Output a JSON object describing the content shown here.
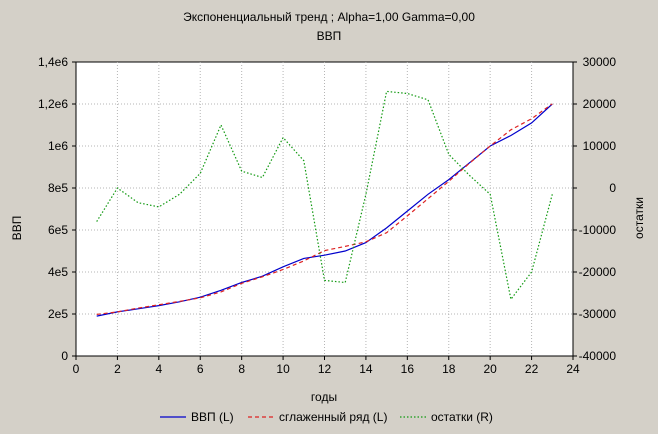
{
  "chart_data": {
    "type": "line",
    "title": "Экспоненциальный тренд ; Alpha=1,00 Gamma=0,00",
    "subtitle": "ВВП",
    "xlabel": "годы",
    "ylabel_left": "ВВП",
    "ylabel_right": "остатки",
    "xlim": [
      0,
      24
    ],
    "ylim_left": [
      0,
      1400000
    ],
    "ylim_right": [
      -40000,
      30000
    ],
    "grid": true,
    "legend_position": "bottom",
    "x_ticks": [
      "0",
      "2",
      "4",
      "6",
      "8",
      "10",
      "12",
      "14",
      "16",
      "18",
      "20",
      "22",
      "24"
    ],
    "y_ticks_left": [
      "0",
      "2e5",
      "4e5",
      "6e5",
      "8e5",
      "1e6",
      "1,2e6",
      "1,4e6"
    ],
    "y_ticks_right": [
      "-40000",
      "-30000",
      "-20000",
      "-10000",
      "0",
      "10000",
      "20000",
      "30000"
    ],
    "x": [
      1,
      2,
      3,
      4,
      5,
      6,
      7,
      8,
      9,
      10,
      11,
      12,
      13,
      14,
      15,
      16,
      17,
      18,
      19,
      20,
      21,
      22,
      23
    ],
    "series": [
      {
        "name": "ВВП (L)",
        "axis": "left",
        "color": "#0000cc",
        "dash": "solid",
        "values": [
          190000,
          210000,
          225000,
          240000,
          258000,
          280000,
          313000,
          350000,
          380000,
          425000,
          465000,
          480000,
          500000,
          540000,
          610000,
          690000,
          770000,
          840000,
          920000,
          1000000,
          1050000,
          1110000,
          1200000
        ]
      },
      {
        "name": "сглаженный ряд (L)",
        "axis": "left",
        "color": "#dd2222",
        "dash": "dashed",
        "values": [
          198000,
          210000,
          228000,
          244000,
          260000,
          277000,
          305000,
          346000,
          377000,
          412000,
          453000,
          502000,
          522000,
          544000,
          587000,
          667000,
          749000,
          832000,
          918000,
          1000000,
          1077000,
          1130000,
          1201000
        ]
      },
      {
        "name": "остатки (R)",
        "axis": "right",
        "color": "#119911",
        "dash": "dotted",
        "values": [
          -8000,
          0,
          -3500,
          -4500,
          -1500,
          3500,
          15000,
          4000,
          2500,
          12000,
          6500,
          -22000,
          -22500,
          -1500,
          23000,
          22500,
          21000,
          8000,
          3000,
          -1500,
          -26500,
          -20000,
          -1500
        ]
      }
    ]
  }
}
